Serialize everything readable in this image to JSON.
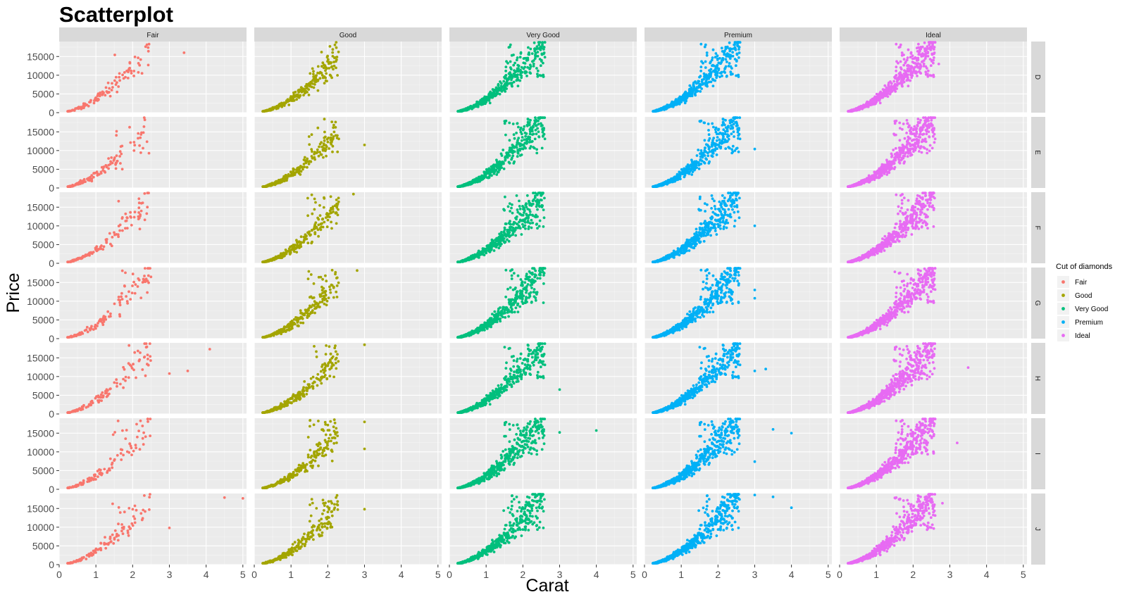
{
  "chart_data": {
    "type": "scatter",
    "title": "Scatterplot",
    "xlabel": "Carat",
    "ylabel": "Price",
    "xlim": [
      0,
      5.1
    ],
    "ylim": [
      0,
      19000
    ],
    "x_ticks": [
      0,
      1,
      2,
      3,
      4,
      5
    ],
    "y_ticks": [
      0,
      5000,
      10000,
      15000
    ],
    "grid": true,
    "facet_columns": [
      "Fair",
      "Good",
      "Very Good",
      "Premium",
      "Ideal"
    ],
    "facet_rows": [
      "D",
      "E",
      "F",
      "G",
      "H",
      "I",
      "J"
    ],
    "legend": {
      "title": "Cut of diamonds",
      "position": "right",
      "entries": [
        {
          "name": "Fair",
          "color": "#F8766D"
        },
        {
          "name": "Good",
          "color": "#A3A500"
        },
        {
          "name": "Very Good",
          "color": "#00BF7D"
        },
        {
          "name": "Premium",
          "color": "#00B0F6"
        },
        {
          "name": "Ideal",
          "color": "#E76BF3"
        }
      ]
    },
    "outliers": {
      "Fair|D": [
        [
          3.4,
          16000
        ]
      ],
      "Fair|H": [
        [
          4.1,
          17300
        ],
        [
          3.0,
          10800
        ],
        [
          3.5,
          11500
        ]
      ],
      "Fair|J": [
        [
          4.5,
          17900
        ],
        [
          5.0,
          17700
        ],
        [
          3.0,
          9800
        ]
      ],
      "Good|E": [
        [
          3.0,
          11500
        ]
      ],
      "Good|F": [
        [
          2.7,
          18500
        ]
      ],
      "Good|G": [
        [
          2.8,
          18200
        ]
      ],
      "Good|H": [
        [
          3.0,
          18500
        ]
      ],
      "Good|I": [
        [
          3.0,
          10800
        ],
        [
          3.0,
          18000
        ]
      ],
      "Good|J": [
        [
          3.0,
          14800
        ]
      ],
      "Very Good|D": [
        [
          2.6,
          14800
        ]
      ],
      "Very Good|H": [
        [
          3.0,
          6500
        ]
      ],
      "Very Good|I": [
        [
          3.0,
          15200
        ],
        [
          4.0,
          15700
        ]
      ],
      "Premium|E": [
        [
          3.0,
          10400
        ],
        [
          2.5,
          10500
        ]
      ],
      "Premium|F": [
        [
          3.0,
          10000
        ]
      ],
      "Premium|G": [
        [
          3.0,
          13000
        ],
        [
          3.0,
          10800
        ]
      ],
      "Premium|H": [
        [
          3.0,
          11500
        ],
        [
          3.3,
          12000
        ]
      ],
      "Premium|I": [
        [
          3.5,
          16000
        ],
        [
          4.0,
          15000
        ],
        [
          3.0,
          7400
        ]
      ],
      "Premium|J": [
        [
          3.0,
          18600
        ],
        [
          3.5,
          18100
        ],
        [
          4.0,
          15200
        ]
      ],
      "Ideal|D": [
        [
          2.7,
          13000
        ]
      ],
      "Ideal|H": [
        [
          3.5,
          12400
        ]
      ],
      "Ideal|I": [
        [
          3.2,
          12400
        ]
      ],
      "Ideal|J": [
        [
          2.8,
          16400
        ]
      ]
    }
  }
}
